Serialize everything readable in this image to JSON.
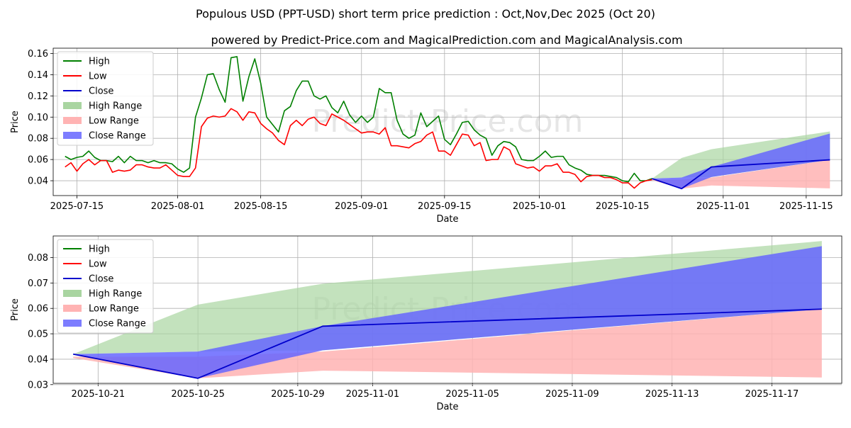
{
  "title": "Populous USD (PPT-USD) short term price prediction : Oct,Nov,Dec 2025 (Oct 20)",
  "subtitle": "powered by Predict-Price.com and MagicalPrediction.com and MagicalAnalysis.com",
  "watermark": "Predict-Price.com",
  "colors": {
    "high": "#008000",
    "low": "#ff0000",
    "close": "#0000cc",
    "high_range": "#a9d5a1",
    "low_range": "#ffb3b3",
    "close_range": "#6666ff"
  },
  "chart_data": [
    {
      "type": "line",
      "xlabel": "Date",
      "ylabel": "Price",
      "xlim": [
        "2025-07-11",
        "2025-11-21"
      ],
      "ylim": [
        0.026,
        0.165
      ],
      "yticks": [
        0.04,
        0.06,
        0.08,
        0.1,
        0.12,
        0.14,
        0.16
      ],
      "ytick_labels": [
        "0.04",
        "0.06",
        "0.08",
        "0.10",
        "0.12",
        "0.14",
        "0.16"
      ],
      "xticks": [
        "2025-07-15",
        "2025-08-01",
        "2025-08-15",
        "2025-09-01",
        "2025-09-15",
        "2025-10-01",
        "2025-10-15",
        "2025-11-01",
        "2025-11-15"
      ],
      "legend": [
        "High",
        "Low",
        "Close",
        "High Range",
        "Low Range",
        "Close Range"
      ],
      "legend_position": "top-left",
      "grid": true,
      "history_start": "2025-07-13",
      "high": [
        0.063,
        0.06,
        0.062,
        0.063,
        0.068,
        0.062,
        0.059,
        0.059,
        0.058,
        0.063,
        0.057,
        0.063,
        0.059,
        0.059,
        0.057,
        0.059,
        0.057,
        0.057,
        0.056,
        0.051,
        0.048,
        0.052,
        0.1,
        0.118,
        0.14,
        0.141,
        0.126,
        0.114,
        0.156,
        0.157,
        0.115,
        0.138,
        0.155,
        0.132,
        0.1,
        0.093,
        0.086,
        0.106,
        0.11,
        0.125,
        0.134,
        0.134,
        0.12,
        0.117,
        0.12,
        0.109,
        0.104,
        0.115,
        0.102,
        0.095,
        0.101,
        0.095,
        0.1,
        0.127,
        0.123,
        0.123,
        0.097,
        0.084,
        0.08,
        0.083,
        0.104,
        0.091,
        0.096,
        0.101,
        0.079,
        0.074,
        0.084,
        0.095,
        0.096,
        0.088,
        0.083,
        0.08,
        0.064,
        0.073,
        0.077,
        0.076,
        0.072,
        0.06,
        0.059,
        0.059,
        0.063,
        0.068,
        0.062,
        0.063,
        0.063,
        0.055,
        0.052,
        0.05,
        0.046,
        0.045,
        0.045,
        0.045,
        0.044,
        0.043,
        0.04,
        0.039,
        0.047,
        0.04,
        0.04,
        0.042
      ],
      "low": [
        0.053,
        0.057,
        0.049,
        0.056,
        0.06,
        0.055,
        0.059,
        0.059,
        0.048,
        0.05,
        0.049,
        0.05,
        0.055,
        0.055,
        0.053,
        0.052,
        0.052,
        0.055,
        0.05,
        0.045,
        0.044,
        0.044,
        0.052,
        0.091,
        0.099,
        0.101,
        0.1,
        0.101,
        0.108,
        0.105,
        0.097,
        0.105,
        0.104,
        0.094,
        0.089,
        0.085,
        0.078,
        0.074,
        0.092,
        0.097,
        0.092,
        0.098,
        0.1,
        0.094,
        0.092,
        0.103,
        0.1,
        0.097,
        0.093,
        0.089,
        0.085,
        0.086,
        0.086,
        0.084,
        0.09,
        0.073,
        0.073,
        0.072,
        0.071,
        0.075,
        0.077,
        0.083,
        0.086,
        0.068,
        0.068,
        0.064,
        0.074,
        0.084,
        0.083,
        0.073,
        0.076,
        0.059,
        0.06,
        0.06,
        0.072,
        0.069,
        0.056,
        0.054,
        0.052,
        0.053,
        0.049,
        0.054,
        0.054,
        0.056,
        0.048,
        0.048,
        0.046,
        0.039,
        0.044,
        0.045,
        0.045,
        0.043,
        0.043,
        0.041,
        0.038,
        0.038,
        0.033,
        0.038,
        0.04,
        0.041
      ]
    },
    {
      "type": "area",
      "xlabel": "Date",
      "ylabel": "Price",
      "xlim": [
        "2025-10-19.2",
        "2025-11-19.8"
      ],
      "ylim": [
        0.0305,
        0.0885
      ],
      "yticks": [
        0.03,
        0.04,
        0.05,
        0.06,
        0.07,
        0.08
      ],
      "ytick_labels": [
        "0.03",
        "0.04",
        "0.05",
        "0.06",
        "0.07",
        "0.08"
      ],
      "xticks": [
        "2025-10-21",
        "2025-10-25",
        "2025-10-29",
        "2025-11-01",
        "2025-11-05",
        "2025-11-09",
        "2025-11-13",
        "2025-11-17"
      ],
      "legend": [
        "High",
        "Low",
        "Close",
        "High Range",
        "Low Range",
        "Close Range"
      ],
      "legend_position": "top-left",
      "grid": true,
      "forecast_dates": [
        "2025-10-20",
        "2025-10-25",
        "2025-10-30",
        "2025-11-19"
      ],
      "close": [
        0.042,
        0.0325,
        0.053,
        0.0597
      ],
      "high_range_top": [
        0.042,
        0.0615,
        0.0697,
        0.0865
      ],
      "high_range_bottom": [
        0.042,
        0.043,
        0.0435,
        0.0597
      ],
      "low_range_top": [
        0.041,
        0.041,
        0.043,
        0.0597
      ],
      "low_range_bottom": [
        0.0405,
        0.0325,
        0.0355,
        0.0328
      ],
      "close_range_top": [
        0.042,
        0.043,
        0.053,
        0.0845
      ],
      "close_range_bottom": [
        0.042,
        0.0325,
        0.0435,
        0.0597
      ]
    }
  ]
}
